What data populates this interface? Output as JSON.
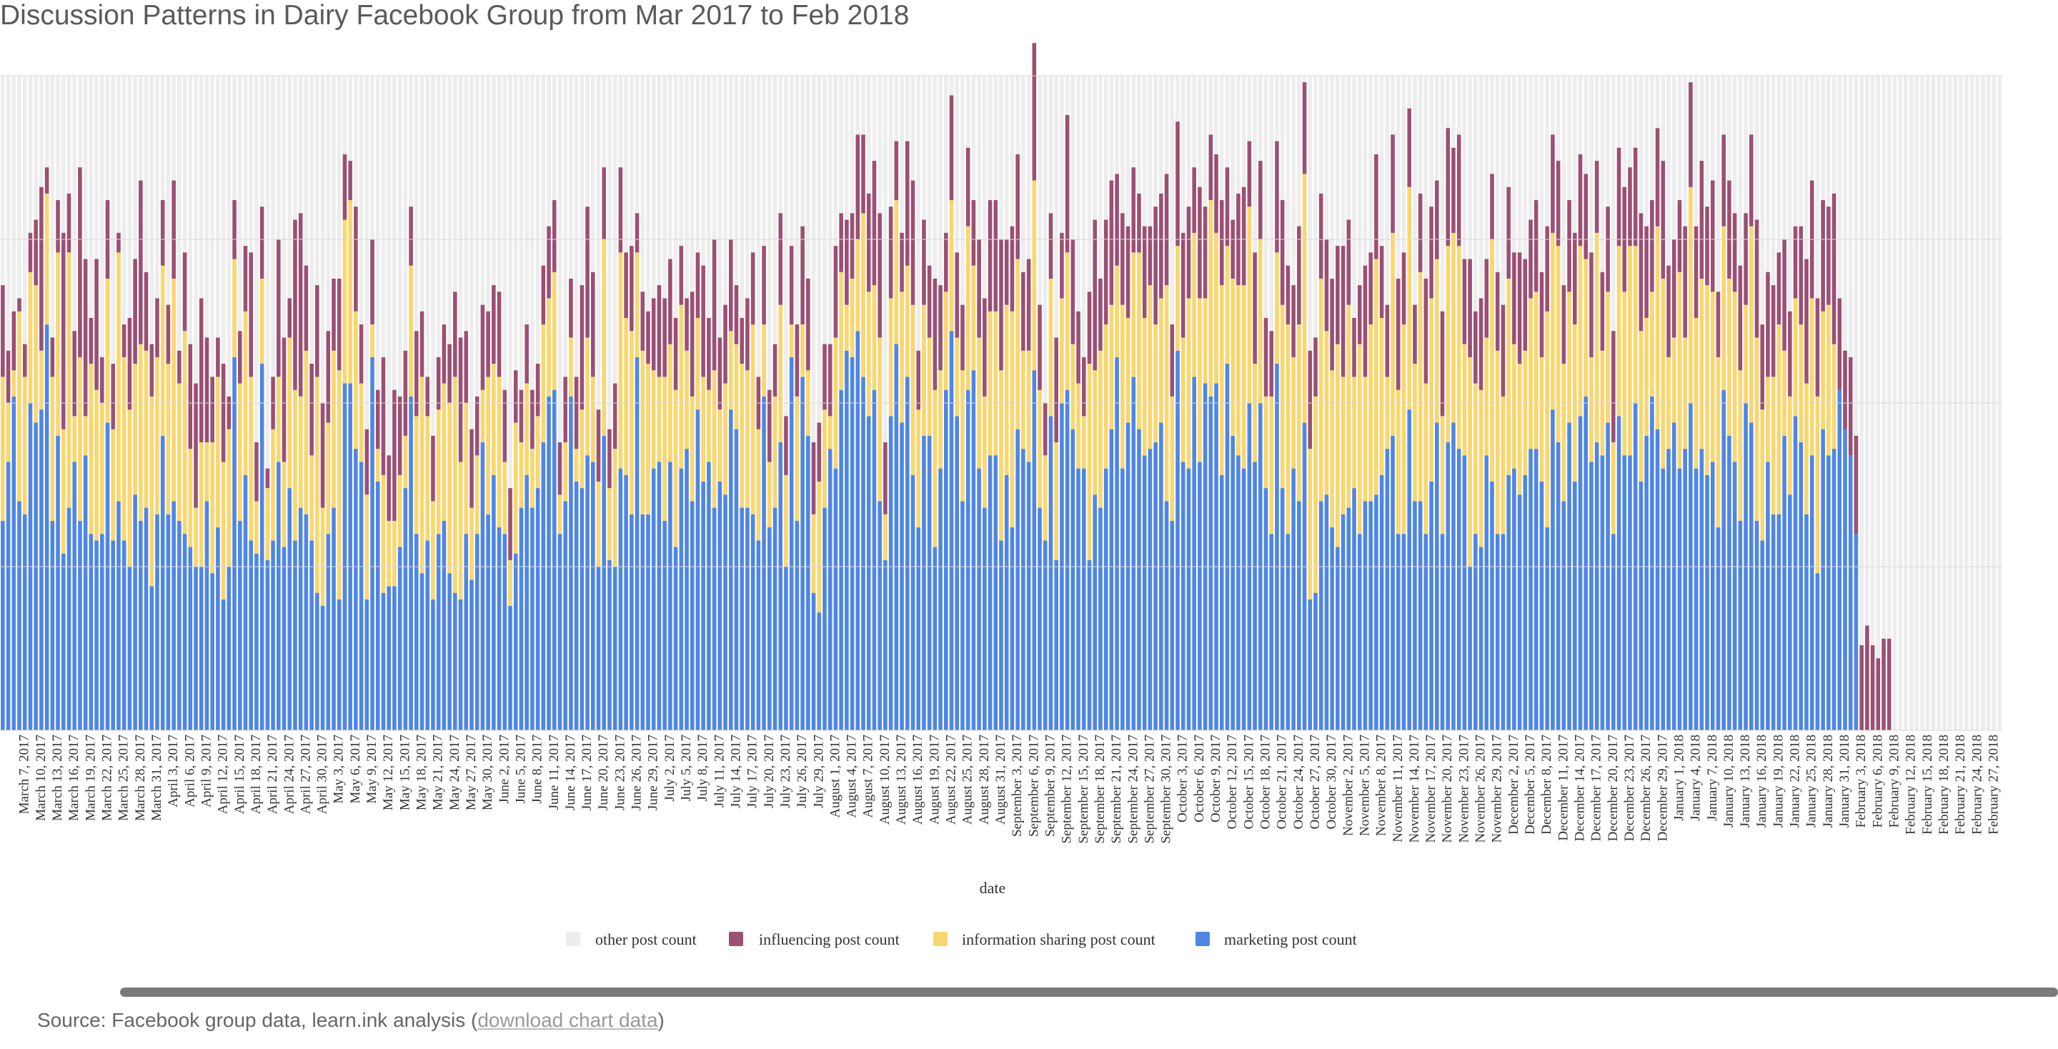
{
  "page": {
    "title": "Discussion Patterns in Dairy Facebook Group from Mar 2017 to Feb 2018",
    "source_prefix": "Source: Facebook group data, learn.ink analysis (",
    "source_link": "download chart data",
    "source_suffix": ")"
  },
  "colors": {
    "other": "#ededed",
    "influencing": "#9c4f73",
    "information_sharing": "#fad66e",
    "marketing": "#4e86e4",
    "grid": "#d9d9d9",
    "axis_text": "#333333"
  },
  "chart_data": {
    "type": "bar",
    "stacked": true,
    "title": "Discussion Patterns in Dairy Facebook Group from Mar 2017 to Feb 2018",
    "xlabel": "date",
    "ylabel": "",
    "ylim": [
      0,
      100
    ],
    "grid": true,
    "legend_position": "bottom",
    "x_start": "2017-03-03",
    "x_end": "2018-02-28",
    "x_tick_labels": [
      "March 7, 2017",
      "March 10, 2017",
      "March 13, 2017",
      "March 16, 2017",
      "March 19, 2017",
      "March 22, 2017",
      "March 25, 2017",
      "March 28, 2017",
      "March 31, 2017",
      "April 3, 2017",
      "April 6, 2017",
      "April 9, 2017",
      "April 12, 2017",
      "April 15, 2017",
      "April 18, 2017",
      "April 21, 2017",
      "April 24, 2017",
      "April 27, 2017",
      "April 30, 2017",
      "May 3, 2017",
      "May 6, 2017",
      "May 9, 2017",
      "May 12, 2017",
      "May 15, 2017",
      "May 18, 2017",
      "May 21, 2017",
      "May 24, 2017",
      "May 27, 2017",
      "May 30, 2017",
      "June 2, 2017",
      "June 5, 2017",
      "June 8, 2017",
      "June 11, 2017",
      "June 14, 2017",
      "June 17, 2017",
      "June 20, 2017",
      "June 23, 2017",
      "June 26, 2017",
      "June 29, 2017",
      "July 2, 2017",
      "July 5, 2017",
      "July 8, 2017",
      "July 11, 2017",
      "July 14, 2017",
      "July 17, 2017",
      "July 20, 2017",
      "July 23, 2017",
      "July 26, 2017",
      "July 29, 2017",
      "August 1, 2017",
      "August 4, 2017",
      "August 7, 2017",
      "August 10, 2017",
      "August 13, 2017",
      "August 16, 2017",
      "August 19, 2017",
      "August 22, 2017",
      "August 25, 2017",
      "August 28, 2017",
      "August 31, 2017",
      "September 3, 2017",
      "September 6, 2017",
      "September 9, 2017",
      "September 12, 2017",
      "September 15, 2017",
      "September 18, 2017",
      "September 21, 2017",
      "September 24, 2017",
      "September 27, 2017",
      "September 30, 2017",
      "October 3, 2017",
      "October 6, 2017",
      "October 9, 2017",
      "October 12, 2017",
      "October 15, 2017",
      "October 18, 2017",
      "October 21, 2017",
      "October 24, 2017",
      "October 27, 2017",
      "October 30, 2017",
      "November 2, 2017",
      "November 5, 2017",
      "November 8, 2017",
      "November 11, 2017",
      "November 14, 2017",
      "November 17, 2017",
      "November 20, 2017",
      "November 23, 2017",
      "November 26, 2017",
      "November 29, 2017",
      "December 2, 2017",
      "December 5, 2017",
      "December 8, 2017",
      "December 11, 2017",
      "December 14, 2017",
      "December 17, 2017",
      "December 20, 2017",
      "December 23, 2017",
      "December 26, 2017",
      "December 29, 2017",
      "January 1, 2018",
      "January 4, 2018",
      "January 7, 2018",
      "January 10, 2018",
      "January 13, 2018",
      "January 16, 2018",
      "January 19, 2018",
      "January 22, 2018",
      "January 25, 2018",
      "January 28, 2018",
      "January 31, 2018",
      "February 3, 2018",
      "February 6, 2018",
      "February 9, 2018",
      "February 12, 2018",
      "February 15, 2018",
      "February 18, 2018",
      "February 21, 2018",
      "February 24, 2018",
      "February 27, 2018"
    ],
    "series": [
      {
        "name": "other post count",
        "key": "other"
      },
      {
        "name": "influencing post count",
        "key": "influencing"
      },
      {
        "name": "information sharing post count",
        "key": "information_sharing"
      },
      {
        "name": "marketing post count",
        "key": "marketing"
      }
    ],
    "marketing": [
      32,
      41,
      51,
      35,
      33,
      50,
      47,
      49,
      62,
      32,
      45,
      27,
      34,
      41,
      32,
      42,
      30,
      29,
      30,
      47,
      29,
      35,
      29,
      25,
      36,
      32,
      34,
      22,
      33,
      45,
      33,
      35,
      32,
      30,
      28,
      25,
      25,
      35,
      24,
      31,
      20,
      25,
      57,
      32,
      39,
      29,
      27,
      56,
      26,
      29,
      41,
      28,
      37,
      29,
      34,
      33,
      29,
      21,
      19,
      30,
      34,
      20,
      53,
      53,
      43,
      41,
      20,
      57,
      38,
      21,
      22,
      22,
      28,
      37,
      51,
      30,
      24,
      29,
      20,
      30,
      32,
      24,
      21,
      20,
      30,
      23,
      30,
      44,
      33,
      39,
      31,
      30,
      19,
      27,
      34,
      39,
      34,
      37,
      44,
      51,
      52,
      30,
      35,
      51,
      38,
      37,
      42,
      41,
      25,
      45,
      26,
      25,
      40,
      39,
      33,
      57,
      33,
      33,
      40,
      41,
      32,
      41,
      28,
      40,
      43,
      35,
      49,
      38,
      41,
      34,
      38,
      36,
      49,
      46,
      34,
      34,
      33,
      29,
      51,
      31,
      34,
      44,
      25,
      57,
      32,
      54,
      45,
      21,
      18,
      34,
      43,
      40,
      52,
      58,
      57,
      61,
      54,
      48,
      52,
      35,
      26,
      48,
      59,
      47,
      54,
      39,
      31,
      45,
      45,
      28,
      40,
      52,
      61,
      48,
      35,
      52,
      55,
      40,
      34,
      42,
      42,
      29,
      39,
      31,
      46,
      43,
      41,
      55,
      34,
      29,
      48,
      26,
      50,
      52,
      46,
      40,
      40,
      26,
      36,
      34,
      40,
      46,
      57,
      40,
      47,
      54,
      46,
      42,
      43,
      44,
      47,
      35,
      32,
      58,
      41,
      40,
      54,
      41,
      53,
      51,
      53,
      39,
      56,
      45,
      42,
      40,
      50,
      41,
      50,
      37,
      30,
      56,
      37,
      30,
      40,
      35,
      47,
      20,
      21,
      35,
      36,
      31,
      28,
      33,
      34,
      37,
      30,
      35,
      35,
      36,
      39,
      43,
      45,
      30,
      30,
      49,
      35,
      35,
      30,
      38,
      47,
      30,
      44,
      47,
      43,
      42,
      25,
      30,
      28,
      42,
      38,
      30,
      30,
      39,
      40,
      36,
      39,
      43,
      43,
      38,
      31,
      49,
      44,
      35,
      47,
      38,
      48,
      51,
      41,
      44,
      42,
      47,
      30,
      48,
      42,
      42,
      50,
      38,
      45,
      51,
      46,
      40,
      43,
      47,
      40,
      43,
      50,
      40,
      43,
      39,
      41,
      31,
      52,
      45,
      41,
      32,
      50,
      47,
      32,
      29,
      41,
      33,
      33,
      45,
      36,
      48,
      44,
      33,
      42,
      24,
      46,
      42,
      43,
      52,
      46,
      42,
      30
    ],
    "information_sharing": [
      22,
      9,
      4,
      29,
      21,
      20,
      21,
      9,
      20,
      22,
      28,
      19,
      39,
      7,
      25,
      6,
      26,
      23,
      20,
      22,
      17,
      38,
      28,
      24,
      20,
      27,
      24,
      29,
      24,
      26,
      23,
      34,
      21,
      31,
      15,
      9,
      19,
      9,
      20,
      23,
      21,
      21,
      15,
      21,
      25,
      25,
      8,
      13,
      11,
      17,
      13,
      13,
      23,
      23,
      17,
      25,
      13,
      33,
      15,
      17,
      24,
      35,
      25,
      28,
      21,
      12,
      16,
      5,
      5,
      18,
      10,
      10,
      11,
      8,
      20,
      18,
      30,
      19,
      15,
      19,
      21,
      26,
      33,
      21,
      20,
      11,
      12,
      8,
      21,
      17,
      23,
      11,
      7,
      20,
      10,
      14,
      9,
      11,
      18,
      15,
      18,
      6,
      9,
      9,
      5,
      12,
      18,
      13,
      13,
      30,
      11,
      18,
      33,
      24,
      28,
      16,
      25,
      23,
      15,
      13,
      22,
      18,
      24,
      25,
      15,
      16,
      14,
      16,
      11,
      21,
      11,
      17,
      12,
      13,
      22,
      21,
      29,
      17,
      11,
      10,
      17,
      21,
      14,
      5,
      19,
      8,
      10,
      12,
      20,
      15,
      5,
      20,
      18,
      7,
      12,
      14,
      25,
      19,
      16,
      25,
      7,
      18,
      22,
      20,
      17,
      26,
      18,
      20,
      15,
      24,
      15,
      15,
      20,
      12,
      20,
      25,
      16,
      20,
      17,
      22,
      22,
      26,
      26,
      33,
      26,
      15,
      17,
      29,
      18,
      13,
      21,
      18,
      16,
      21,
      13,
      13,
      8,
      30,
      19,
      24,
      22,
      19,
      14,
      25,
      16,
      19,
      27,
      21,
      25,
      18,
      19,
      33,
      19,
      16,
      19,
      26,
      22,
      25,
      13,
      30,
      23,
      29,
      18,
      24,
      26,
      28,
      30,
      15,
      25,
      14,
      21,
      17,
      28,
      32,
      17,
      27,
      38,
      23,
      30,
      34,
      25,
      24,
      31,
      21,
      31,
      17,
      29,
      19,
      27,
      36,
      24,
      11,
      31,
      22,
      32,
      34,
      21,
      35,
      23,
      28,
      25,
      18,
      30,
      29,
      31,
      17,
      32,
      23,
      24,
      18,
      37,
      28,
      21,
      30,
      19,
      20,
      19,
      23,
      24,
      19,
      33,
      27,
      30,
      21,
      20,
      24,
      26,
      21,
      16,
      32,
      16,
      20,
      14,
      26,
      25,
      32,
      24,
      23,
      18,
      16,
      31,
      29,
      14,
      13,
      30,
      17,
      33,
      23,
      26,
      29,
      26,
      26,
      25,
      24,
      26,
      23,
      15,
      30,
      28,
      20,
      13,
      21,
      29,
      13,
      15,
      18,
      18,
      20,
      24,
      27,
      18,
      23,
      16
    ],
    "influencing": [
      14,
      8,
      9,
      2,
      5,
      6,
      10,
      25,
      4,
      6,
      8,
      30,
      9,
      13,
      29,
      24,
      7,
      20,
      7,
      12,
      10,
      3,
      5,
      14,
      16,
      25,
      12,
      8,
      9,
      10,
      9,
      15,
      5,
      12,
      16,
      19,
      22,
      16,
      10,
      6,
      15,
      5,
      9,
      8,
      10,
      19,
      9,
      11,
      3,
      8,
      21,
      19,
      6,
      26,
      28,
      13,
      14,
      14,
      16,
      14,
      11,
      14,
      10,
      6,
      16,
      9,
      10,
      13,
      9,
      18,
      10,
      20,
      12,
      13,
      9,
      13,
      10,
      6,
      10,
      8,
      9,
      9,
      13,
      19,
      11,
      12,
      9,
      13,
      10,
      12,
      13,
      11,
      11,
      8,
      8,
      9,
      9,
      8,
      9,
      11,
      11,
      8,
      10,
      9,
      11,
      19,
      20,
      16,
      11,
      11,
      9,
      10,
      13,
      10,
      13,
      6,
      9,
      8,
      11,
      14,
      12,
      13,
      11,
      9,
      8,
      16,
      10,
      17,
      11,
      20,
      11,
      12,
      14,
      9,
      7,
      11,
      11,
      8,
      12,
      11,
      8,
      14,
      9,
      12,
      11,
      15,
      14,
      11,
      9,
      10,
      11,
      14,
      9,
      13,
      10,
      16,
      12,
      15,
      19,
      19,
      11,
      14,
      9,
      9,
      19,
      19,
      9,
      13,
      11,
      17,
      13,
      9,
      16,
      13,
      10,
      12,
      10,
      15,
      15,
      17,
      17,
      20,
      10,
      13,
      16,
      12,
      14,
      21,
      13,
      8,
      10,
      16,
      10,
      21,
      16,
      11,
      9,
      11,
      23,
      11,
      16,
      19,
      14,
      14,
      14,
      13,
      9,
      14,
      9,
      18,
      16,
      17,
      11,
      19,
      16,
      14,
      10,
      17,
      14,
      10,
      12,
      13,
      12,
      9,
      14,
      15,
      10,
      17,
      12,
      12,
      10,
      17,
      16,
      9,
      11,
      15,
      14,
      15,
      9,
      13,
      14,
      14,
      15,
      20,
      13,
      9,
      9,
      17,
      11,
      16,
      11,
      11,
      15,
      17,
      11,
      12,
      9,
      12,
      16,
      14,
      12,
      16,
      18,
      13,
      17,
      13,
      15,
      11,
      14,
      12,
      10,
      12,
      14,
      14,
      14,
      17,
      14,
      12,
      14,
      13,
      13,
      15,
      13,
      12,
      14,
      14,
      14,
      13,
      16,
      11,
      12,
      13,
      17,
      15,
      16,
      12,
      15,
      18,
      14,
      14,
      15,
      18,
      14,
      15,
      11,
      17,
      16,
      14,
      18,
      12,
      17,
      10,
      14,
      15,
      12,
      16,
      14,
      14,
      18,
      13,
      16,
      14,
      11,
      17,
      13,
      11,
      15,
      19,
      18,
      15,
      17,
      15,
      23,
      14,
      12,
      15,
      15,
      13,
      16,
      13,
      11,
      14,
      14
    ],
    "other_fill_to": 100
  }
}
